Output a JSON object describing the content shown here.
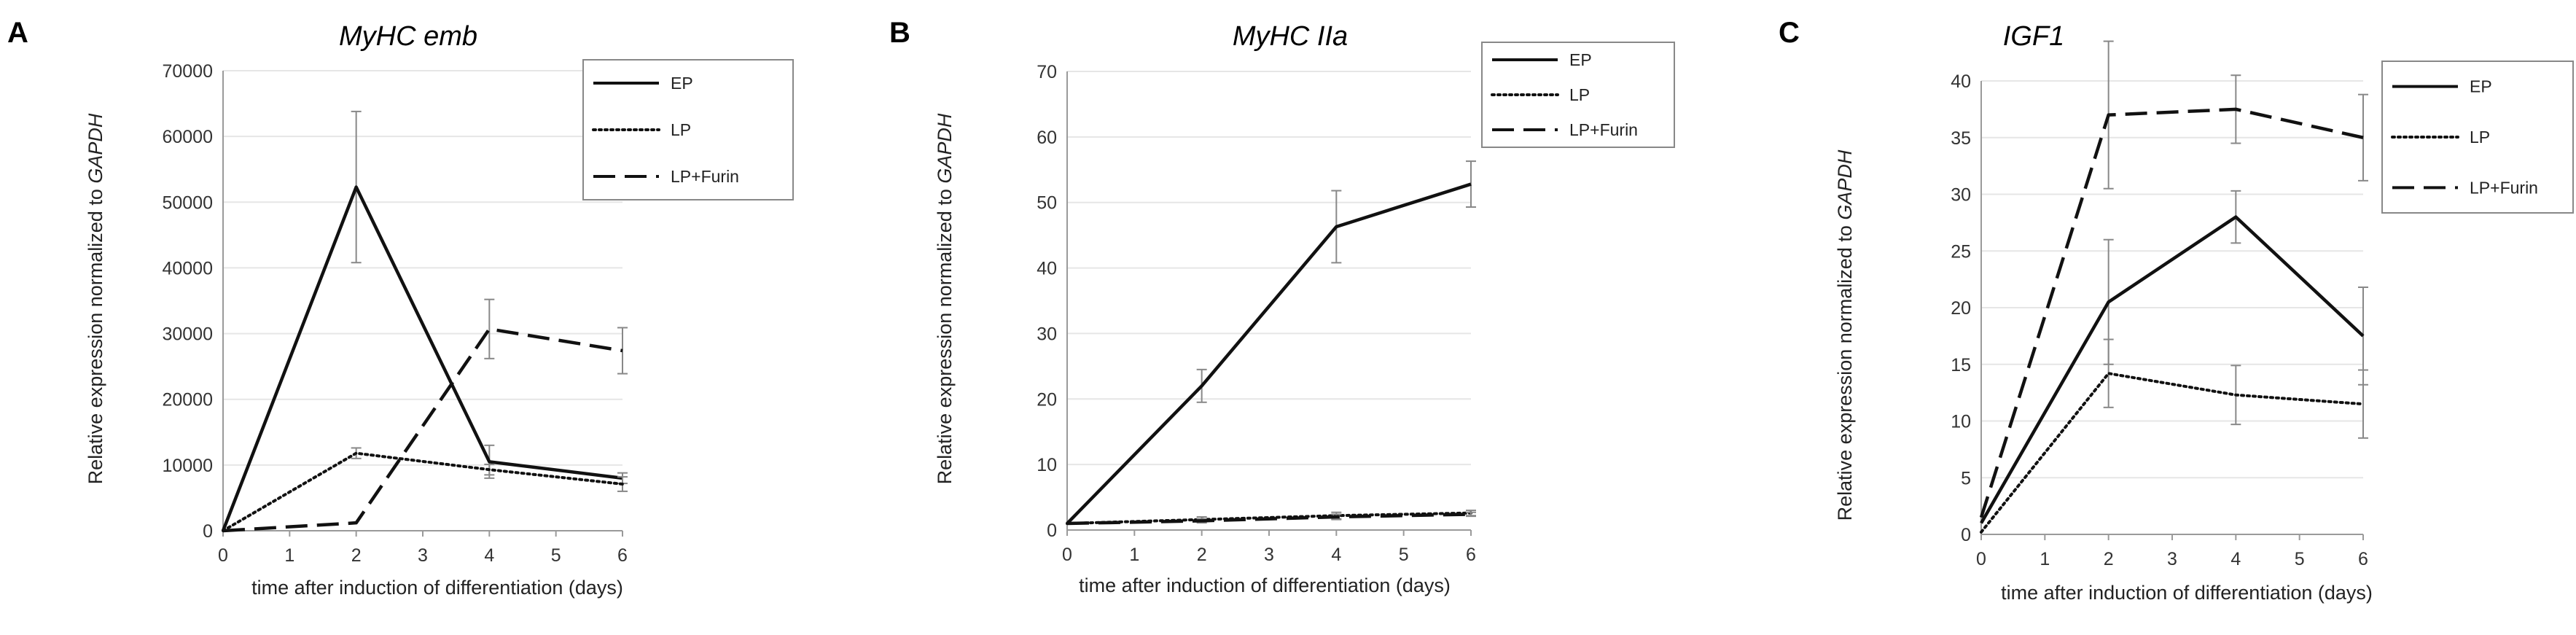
{
  "chart_data": [
    {
      "panel": "A",
      "type": "line",
      "title": "MyHC emb",
      "xlabel": "time after induction of differentiation (days)",
      "ylabel": "Relative expression normalized to GAPDH",
      "ylabel_plain": "Relative expression normalized to ",
      "ylabel_italic": "GAPDH",
      "xlim": [
        0,
        6
      ],
      "ylim": [
        0,
        70000
      ],
      "xticks": [
        "0",
        "1",
        "2",
        "3",
        "4",
        "5",
        "6"
      ],
      "yticks": [
        "0",
        "10000",
        "20000",
        "30000",
        "40000",
        "50000",
        "60000",
        "70000"
      ],
      "legend": [
        "EP",
        "LP",
        "LP+Furin"
      ],
      "series": [
        {
          "name": "EP",
          "style": "solid",
          "x": [
            0,
            2,
            4,
            6
          ],
          "values": [
            0,
            52300,
            10500,
            8000
          ],
          "err": [
            0,
            11500,
            2500,
            800
          ]
        },
        {
          "name": "LP",
          "style": "dotted",
          "x": [
            0,
            2,
            4,
            6
          ],
          "values": [
            0,
            11800,
            9300,
            7100
          ],
          "err": [
            0,
            800,
            800,
            1100
          ]
        },
        {
          "name": "LP+Furin",
          "style": "dashed",
          "x": [
            0,
            2,
            4,
            6
          ],
          "values": [
            0,
            1200,
            30700,
            27400
          ],
          "err": [
            0,
            0,
            4500,
            3500
          ]
        }
      ]
    },
    {
      "panel": "B",
      "type": "line",
      "title": "MyHC IIa",
      "xlabel": "time after induction of differentiation (days)",
      "ylabel": "Relative expression normalized to GAPDH",
      "ylabel_plain": "Relative expression normalized to ",
      "ylabel_italic": "GAPDH",
      "xlim": [
        0,
        6
      ],
      "ylim": [
        0,
        70
      ],
      "xticks": [
        "0",
        "1",
        "2",
        "3",
        "4",
        "5",
        "6"
      ],
      "yticks": [
        "0",
        "10",
        "20",
        "30",
        "40",
        "50",
        "60",
        "70"
      ],
      "legend": [
        "EP",
        "LP",
        "LP+Furin"
      ],
      "series": [
        {
          "name": "EP",
          "style": "solid",
          "x": [
            0,
            2,
            4,
            6
          ],
          "values": [
            1,
            22,
            46.3,
            52.8
          ],
          "err": [
            0,
            2.5,
            5.5,
            3.5
          ]
        },
        {
          "name": "LP",
          "style": "dotted",
          "x": [
            0,
            2,
            4,
            6
          ],
          "values": [
            1,
            1.6,
            2.2,
            2.6
          ],
          "err": [
            0,
            0.4,
            0.5,
            0.4
          ]
        },
        {
          "name": "LP+Furin",
          "style": "dashed",
          "x": [
            0,
            2,
            4,
            6
          ],
          "values": [
            1,
            1.4,
            2.0,
            2.4
          ],
          "err": [
            0,
            0.3,
            0.4,
            0.3
          ]
        }
      ]
    },
    {
      "panel": "C",
      "type": "line",
      "title": "IGF1",
      "xlabel": "time after induction of differentiation (days)",
      "ylabel": "Relative expression normalized to GAPDH",
      "ylabel_plain": "Relative expression normalized to ",
      "ylabel_italic": "GAPDH",
      "xlim": [
        0,
        6
      ],
      "ylim": [
        0,
        40
      ],
      "xticks": [
        "0",
        "1",
        "2",
        "3",
        "4",
        "5",
        "6"
      ],
      "yticks": [
        "0",
        "5",
        "10",
        "15",
        "20",
        "25",
        "30",
        "35",
        "40"
      ],
      "legend": [
        "EP",
        "LP",
        "LP+Furin"
      ],
      "series": [
        {
          "name": "EP",
          "style": "solid",
          "x": [
            0,
            2,
            4,
            6
          ],
          "values": [
            1,
            20.5,
            28.0,
            17.5
          ],
          "err": [
            0,
            5.5,
            2.3,
            4.3
          ]
        },
        {
          "name": "LP",
          "style": "dotted",
          "x": [
            0,
            2,
            4,
            6
          ],
          "values": [
            0.2,
            14.2,
            12.3,
            11.5
          ],
          "err": [
            0,
            3.0,
            2.6,
            3.0
          ]
        },
        {
          "name": "LP+Furin",
          "style": "dashed",
          "x": [
            0,
            2,
            4,
            6
          ],
          "values": [
            1.5,
            37.0,
            37.5,
            35.0
          ],
          "err": [
            0,
            6.5,
            3.0,
            3.8
          ]
        }
      ]
    }
  ]
}
